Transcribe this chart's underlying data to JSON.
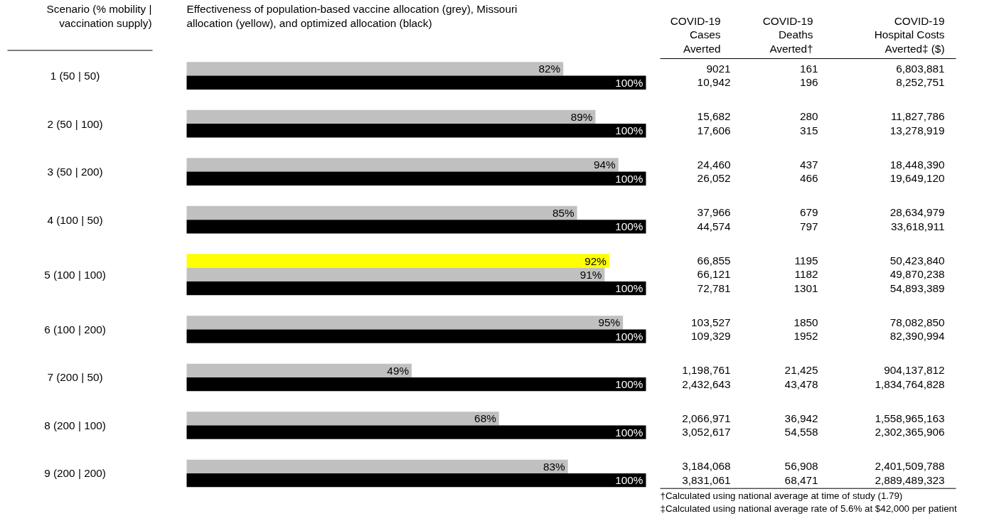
{
  "chart_data": [
    {
      "type": "bar",
      "orientation": "horizontal",
      "title": "Effectiveness of population-based vaccine allocation (grey), Missouri allocation (yellow), and optimized allocation (black)",
      "ylabel": "Scenario (% mobility | vaccination supply)",
      "categories": [
        "1 (50 | 50)",
        "2 (50 | 100)",
        "3 (50 | 200)",
        "4 (100 | 50)",
        "5 (100 | 100)",
        "6 (100 | 200)",
        "7 (200 | 50)",
        "8 (200 | 100)",
        "9 (200 | 200)"
      ],
      "xlim": [
        0,
        100
      ],
      "tick_labels": false,
      "series": [
        {
          "color": "#ffff00",
          "values": [
            null,
            null,
            null,
            null,
            92,
            null,
            null,
            null,
            null
          ],
          "value_labels": [
            null,
            null,
            null,
            null,
            "92%",
            null,
            null,
            null,
            null
          ]
        },
        {
          "color": "#c0c0c0",
          "values": [
            82,
            89,
            94,
            85,
            91,
            95,
            49,
            68,
            83
          ],
          "value_labels": [
            "82%",
            "89%",
            "94%",
            "85%",
            "91%",
            "95%",
            "49%",
            "68%",
            "83%"
          ]
        },
        {
          "color": "#000000",
          "values": [
            100,
            100,
            100,
            100,
            100,
            100,
            100,
            100,
            100
          ],
          "value_labels": [
            "100%",
            "100%",
            "100%",
            "100%",
            "100%",
            "100%",
            "100%",
            "100%",
            "100%"
          ]
        }
      ]
    },
    {
      "type": "other",
      "categories": [
        "COVID-19\nCases\nAverted",
        "COVID-19\nDeaths\nAverted†",
        "COVID-19\nHospital Costs\nAverted‡ ($)"
      ],
      "cell_labels": [
        [
          "9021",
          "161",
          "6,803,881"
        ],
        [
          "10,942",
          "196",
          "8,252,751"
        ],
        [
          "15,682",
          "280",
          "11,827,786"
        ],
        [
          "17,606",
          "315",
          "13,278,919"
        ],
        [
          "24,460",
          "437",
          "18,448,390"
        ],
        [
          "26,052",
          "466",
          "19,649,120"
        ],
        [
          "37,966",
          "679",
          "28,634,979"
        ],
        [
          "44,574",
          "797",
          "33,618,911"
        ],
        [
          "66,855",
          "1195",
          "50,423,840"
        ],
        [
          "66,121",
          "1182",
          "49,870,238"
        ],
        [
          "72,781",
          "1301",
          "54,893,389"
        ],
        [
          "103,527",
          "1850",
          "78,082,850"
        ],
        [
          "109,329",
          "1952",
          "82,390,994"
        ],
        [
          "1,198,761",
          "21,425",
          "904,137,812"
        ],
        [
          "2,432,643",
          "43,478",
          "1,834,764,828"
        ],
        [
          "2,066,971",
          "36,942",
          "1,558,965,163"
        ],
        [
          "3,052,617",
          "54,558",
          "2,302,365,906"
        ],
        [
          "3,184,068",
          "56,908",
          "2,401,509,788"
        ],
        [
          "3,831,061",
          "68,471",
          "2,889,489,323"
        ]
      ],
      "annotations": [
        "†Calculated using national average at time of study (1.79)",
        "‡Calculated using national average rate of 5.6% at $42,000 per patient"
      ]
    }
  ]
}
